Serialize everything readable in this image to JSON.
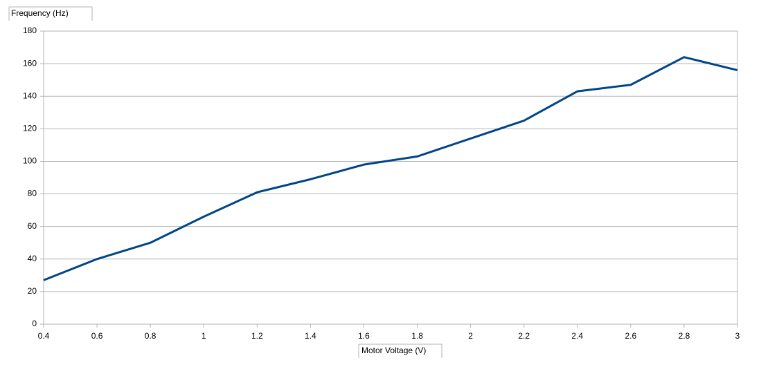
{
  "chart_data": {
    "type": "line",
    "x_label": "Motor Voltage (V)",
    "y_label": "Frequency (Hz)",
    "x": [
      0.4,
      0.6,
      0.8,
      1,
      1.2,
      1.4,
      1.6,
      1.8,
      2,
      2.2,
      2.4,
      2.6,
      2.8,
      3
    ],
    "series": [
      {
        "color": "#004586",
        "values": [
          27,
          40,
          50,
          66,
          81,
          89,
          98,
          103,
          114,
          125,
          143,
          147,
          164,
          156
        ]
      }
    ],
    "xlim": [
      0.4,
      3
    ],
    "xticks": [
      0.4,
      0.6,
      0.8,
      1,
      1.2,
      1.4,
      1.6,
      1.8,
      2,
      2.2,
      2.4,
      2.6,
      2.8,
      3
    ],
    "ylim": [
      0,
      180
    ],
    "yticks": [
      0,
      20,
      40,
      60,
      80,
      100,
      120,
      140,
      160,
      180
    ],
    "grid": true
  }
}
